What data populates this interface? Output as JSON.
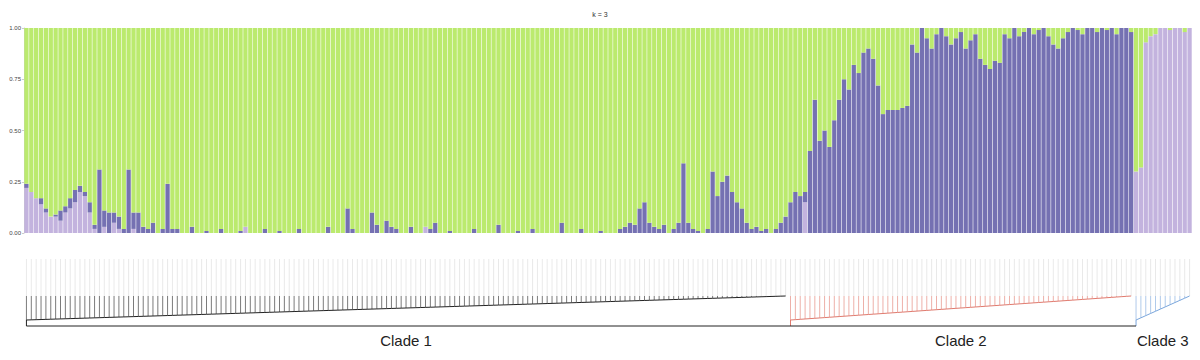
{
  "chart_data": {
    "type": "bar",
    "title": "k = 3",
    "stacked": true,
    "grid": false,
    "tick_labels": "y",
    "ylim": [
      0,
      1
    ],
    "yticks": [
      {
        "value": 0,
        "label": "0.00"
      },
      {
        "value": 0.25,
        "label": "0.25"
      },
      {
        "value": 0.5,
        "label": "0.50"
      },
      {
        "value": 0.75,
        "label": "0.75"
      },
      {
        "value": 1,
        "label": "1.00"
      }
    ],
    "categories": [
      null,
      null,
      null,
      null,
      null,
      null,
      null,
      null,
      null,
      null,
      null,
      null,
      null,
      null,
      null,
      null,
      null,
      null,
      null,
      null,
      null,
      null,
      null,
      null,
      null,
      null,
      null,
      null,
      null,
      null,
      null,
      null,
      null,
      null,
      null,
      null,
      null,
      null,
      null,
      null,
      null,
      null,
      null,
      null,
      null,
      null,
      null,
      null,
      null,
      null,
      null,
      null,
      null,
      null,
      null,
      null,
      null,
      null,
      null,
      null,
      null,
      null,
      null,
      null,
      null,
      null,
      null,
      null,
      null,
      null,
      null,
      null,
      null,
      null,
      null,
      null,
      null,
      null,
      null,
      null,
      null,
      null,
      null,
      null,
      null,
      null,
      null,
      null,
      null,
      null,
      null,
      null,
      null,
      null,
      null,
      null,
      null,
      null,
      null,
      null,
      null,
      null,
      null,
      null,
      null,
      null,
      null,
      null,
      null,
      null,
      null,
      null,
      null,
      null,
      null,
      null,
      null,
      null,
      null,
      null,
      null,
      null,
      null,
      null,
      null,
      null,
      null,
      null,
      null,
      null,
      null,
      null,
      null,
      null,
      null,
      null,
      null,
      null,
      null,
      null,
      null,
      null,
      null,
      null,
      null,
      null,
      null,
      null,
      null,
      null,
      null,
      null,
      null,
      null,
      null,
      null,
      null,
      null,
      null,
      null,
      null,
      null,
      null,
      null,
      null,
      null,
      null,
      null,
      null,
      null,
      null,
      null,
      null,
      null,
      null,
      null,
      null,
      null,
      null,
      null,
      null,
      null,
      null,
      null,
      null,
      null,
      null,
      null,
      null,
      null,
      null,
      null,
      null,
      null,
      null,
      null,
      null,
      null,
      null,
      null,
      null,
      null,
      null,
      null,
      null,
      null,
      null,
      null,
      null,
      null,
      null,
      null,
      null,
      null,
      null,
      null,
      null,
      null,
      null,
      null,
      null,
      null,
      null,
      null,
      null,
      null,
      null,
      null,
      null,
      null,
      null,
      null,
      null,
      null,
      null,
      null,
      null,
      null,
      null,
      null
    ],
    "series": [
      {
        "color": "#c3b3de",
        "values": [
          0.22,
          0.2,
          0.17,
          0.14,
          0.1,
          0.08,
          0.08,
          0.06,
          0.1,
          0.12,
          0.15,
          0.2,
          0.18,
          0.1,
          0.02,
          0,
          0.03,
          0,
          0.05,
          0.02,
          0,
          0,
          0.02,
          0,
          0,
          0,
          0,
          0,
          0,
          0,
          0,
          0,
          0,
          0,
          0,
          0,
          0,
          0,
          0,
          0,
          0,
          0,
          0,
          0,
          0,
          0.03,
          0,
          0,
          0,
          0,
          0,
          0,
          0,
          0,
          0,
          0,
          0,
          0,
          0,
          0,
          0,
          0,
          0,
          0,
          0,
          0,
          0,
          0,
          0,
          0,
          0,
          0,
          0,
          0,
          0,
          0,
          0,
          0,
          0,
          0,
          0,
          0,
          0.03,
          0,
          0,
          0,
          0,
          0,
          0,
          0,
          0,
          0,
          0,
          0,
          0,
          0,
          0,
          0,
          0,
          0,
          0,
          0,
          0,
          0,
          0,
          0,
          0,
          0,
          0,
          0,
          0,
          0,
          0,
          0,
          0,
          0,
          0,
          0,
          0,
          0,
          0,
          0,
          0,
          0,
          0,
          0,
          0,
          0,
          0,
          0,
          0,
          0,
          0,
          0,
          0,
          0,
          0,
          0,
          0,
          0,
          0,
          0,
          0,
          0,
          0,
          0,
          0,
          0,
          0,
          0,
          0,
          0,
          0,
          0,
          0,
          0,
          0,
          0,
          0,
          0,
          0.15,
          0,
          0,
          0,
          0,
          0,
          0,
          0,
          0,
          0,
          0,
          0,
          0,
          0,
          0,
          0,
          0,
          0,
          0,
          0,
          0,
          0,
          0,
          0,
          0,
          0,
          0,
          0,
          0,
          0,
          0,
          0,
          0,
          0,
          0,
          0,
          0,
          0,
          0,
          0,
          0,
          0,
          0,
          0,
          0,
          0,
          0,
          0,
          0,
          0,
          0,
          0,
          0,
          0,
          0,
          0,
          0,
          0,
          0,
          0,
          0,
          0,
          0,
          0,
          0,
          0,
          0,
          0,
          0.3,
          0.32,
          0.93,
          0.96,
          0.97,
          1,
          1,
          0.99,
          1,
          1,
          0.98,
          1
        ]
      },
      {
        "color": "#7571b2",
        "values": [
          0.02,
          0,
          0,
          0.03,
          0.02,
          0,
          0.01,
          0.05,
          0.03,
          0.05,
          0.06,
          0.03,
          0.02,
          0.05,
          0.02,
          0.31,
          0.08,
          0.1,
          0.05,
          0.06,
          0.02,
          0.31,
          0.08,
          0.1,
          0.03,
          0.02,
          0.05,
          0,
          0.02,
          0.24,
          0.02,
          0.02,
          0,
          0,
          0.03,
          0,
          0,
          0.01,
          0,
          0,
          0.02,
          0,
          0,
          0,
          0.01,
          0,
          0,
          0,
          0,
          0.02,
          0,
          0,
          0.01,
          0,
          0,
          0,
          0.02,
          0,
          0,
          0,
          0,
          0,
          0.03,
          0,
          0,
          0,
          0.12,
          0.02,
          0,
          0,
          0,
          0.1,
          0.04,
          0,
          0.06,
          0.03,
          0.02,
          0,
          0,
          0.03,
          0,
          0,
          0,
          0.02,
          0.05,
          0,
          0,
          0.01,
          0,
          0,
          0,
          0,
          0.02,
          0,
          0,
          0,
          0,
          0.04,
          0,
          0,
          0,
          0.01,
          0,
          0,
          0.02,
          0,
          0,
          0,
          0,
          0,
          0.05,
          0,
          0,
          0,
          0.02,
          0,
          0,
          0,
          0.01,
          0,
          0,
          0,
          0.02,
          0.03,
          0.05,
          0.04,
          0.12,
          0.15,
          0.05,
          0.03,
          0.02,
          0.04,
          0,
          0.02,
          0.05,
          0.34,
          0.05,
          0.02,
          0.01,
          0,
          0.02,
          0.3,
          0.18,
          0.25,
          0.28,
          0.2,
          0.15,
          0.12,
          0.05,
          0.02,
          0.03,
          0.01,
          0.02,
          0,
          0.02,
          0.05,
          0.08,
          0.15,
          0.2,
          0.18,
          0.05,
          0.4,
          0.65,
          0.45,
          0.5,
          0.42,
          0.55,
          0.65,
          0.75,
          0.7,
          0.82,
          0.78,
          0.88,
          0.9,
          0.85,
          0.72,
          0.58,
          0.6,
          0.6,
          0.6,
          0.61,
          0.62,
          0.92,
          0.88,
          1,
          0.95,
          0.9,
          0.97,
          1,
          0.96,
          0.92,
          0.95,
          0.98,
          0.9,
          0.94,
          0.97,
          0.85,
          0.82,
          0.8,
          0.84,
          0.83,
          0.97,
          0.95,
          1,
          0.96,
          0.98,
          1,
          0.97,
          0.99,
          1,
          0.96,
          0.92,
          0.9,
          0.95,
          0.98,
          1,
          0.99,
          0.97,
          1,
          1,
          0.98,
          1,
          0.99,
          1,
          0.97,
          1,
          1,
          0.98,
          0,
          0,
          0,
          0,
          0,
          0,
          0,
          0,
          0,
          0,
          0,
          0
        ]
      },
      {
        "color": "#bbea6e",
        "values": [
          0.76,
          0.8,
          0.83,
          0.83,
          0.88,
          0.92,
          0.91,
          0.89,
          0.87,
          0.83,
          0.79,
          0.77,
          0.8,
          0.85,
          0.96,
          0.69,
          0.89,
          0.9,
          0.9,
          0.92,
          0.98,
          0.69,
          0.9,
          0.9,
          0.97,
          0.98,
          0.95,
          1,
          0.98,
          0.76,
          0.98,
          0.98,
          1,
          1,
          0.97,
          1,
          1,
          0.99,
          1,
          1,
          0.98,
          1,
          1,
          1,
          0.99,
          0.97,
          1,
          1,
          1,
          0.98,
          1,
          1,
          0.99,
          1,
          1,
          1,
          0.98,
          1,
          1,
          1,
          1,
          1,
          0.97,
          1,
          1,
          1,
          0.88,
          0.98,
          1,
          1,
          1,
          0.9,
          0.96,
          1,
          0.94,
          0.97,
          0.98,
          1,
          1,
          0.97,
          1,
          1,
          0.97,
          0.98,
          0.95,
          1,
          1,
          0.99,
          1,
          1,
          1,
          1,
          0.98,
          1,
          1,
          1,
          1,
          0.96,
          1,
          1,
          1,
          0.99,
          1,
          1,
          0.98,
          1,
          1,
          1,
          1,
          1,
          0.95,
          1,
          1,
          1,
          0.98,
          1,
          1,
          1,
          0.99,
          1,
          1,
          1,
          0.98,
          0.97,
          0.95,
          0.96,
          0.88,
          0.85,
          0.95,
          0.97,
          0.98,
          0.96,
          1,
          0.98,
          0.95,
          0.66,
          0.95,
          0.98,
          0.99,
          1,
          0.98,
          0.7,
          0.82,
          0.75,
          0.72,
          0.8,
          0.85,
          0.88,
          0.95,
          0.98,
          0.97,
          0.99,
          0.98,
          1,
          0.98,
          0.95,
          0.92,
          0.85,
          0.8,
          0.82,
          0.8,
          0.6,
          0.35,
          0.55,
          0.5,
          0.58,
          0.45,
          0.35,
          0.25,
          0.3,
          0.18,
          0.22,
          0.12,
          0.1,
          0.15,
          0.28,
          0.42,
          0.4,
          0.4,
          0.4,
          0.39,
          0.38,
          0.08,
          0.12,
          0,
          0.05,
          0.1,
          0.03,
          0,
          0.04,
          0.08,
          0.05,
          0.02,
          0.1,
          0.06,
          0.03,
          0.15,
          0.18,
          0.2,
          0.16,
          0.17,
          0.03,
          0.05,
          0,
          0.04,
          0.02,
          0,
          0.03,
          0.01,
          0,
          0.04,
          0.08,
          0.1,
          0.05,
          0.02,
          0,
          0.01,
          0.03,
          0,
          0,
          0.02,
          0,
          0.01,
          0,
          0.03,
          0,
          0,
          0.02,
          0.7,
          0.68,
          0.07,
          0.04,
          0.03,
          0,
          0,
          0.01,
          0,
          0,
          0.02,
          0
        ]
      }
    ],
    "clades": [
      {
        "label": "Clade 1",
        "start": 0,
        "end": 156,
        "color": "#222222"
      },
      {
        "label": "Clade 2",
        "start": 157,
        "end": 227,
        "color": "#e07a6e"
      },
      {
        "label": "Clade 3",
        "start": 228,
        "end": 239,
        "color": "#7aa6dc"
      }
    ]
  }
}
